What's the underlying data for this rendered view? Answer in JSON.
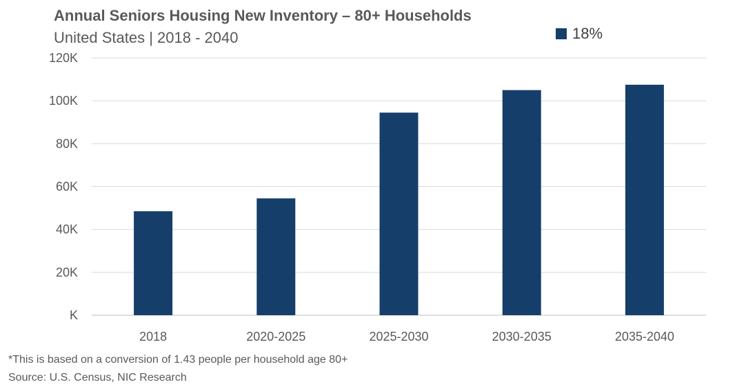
{
  "chart_data": {
    "type": "bar",
    "title": "Annual Seniors Housing New Inventory – 80+ Households",
    "subtitle": "United States | 2018 - 2040",
    "categories": [
      "2018",
      "2020-2025",
      "2025-2030",
      "2030-2035",
      "2035-2040"
    ],
    "series": [
      {
        "name": "18%",
        "values": [
          48500,
          54500,
          94500,
          105000,
          107500
        ],
        "color": "#153F6A"
      }
    ],
    "ylim": [
      0,
      120000
    ],
    "yticks": [
      0,
      20000,
      40000,
      60000,
      80000,
      100000,
      120000
    ],
    "ytick_labels": [
      "K",
      "20K",
      "40K",
      "60K",
      "80K",
      "100K",
      "120K"
    ],
    "xlabel": "",
    "ylabel": "",
    "grid": true,
    "legend": "top-right"
  },
  "notes": {
    "footnote": "*This is based on a conversion of 1.43 people per household age 80+",
    "source": "Source: U.S. Census, NIC Research"
  }
}
